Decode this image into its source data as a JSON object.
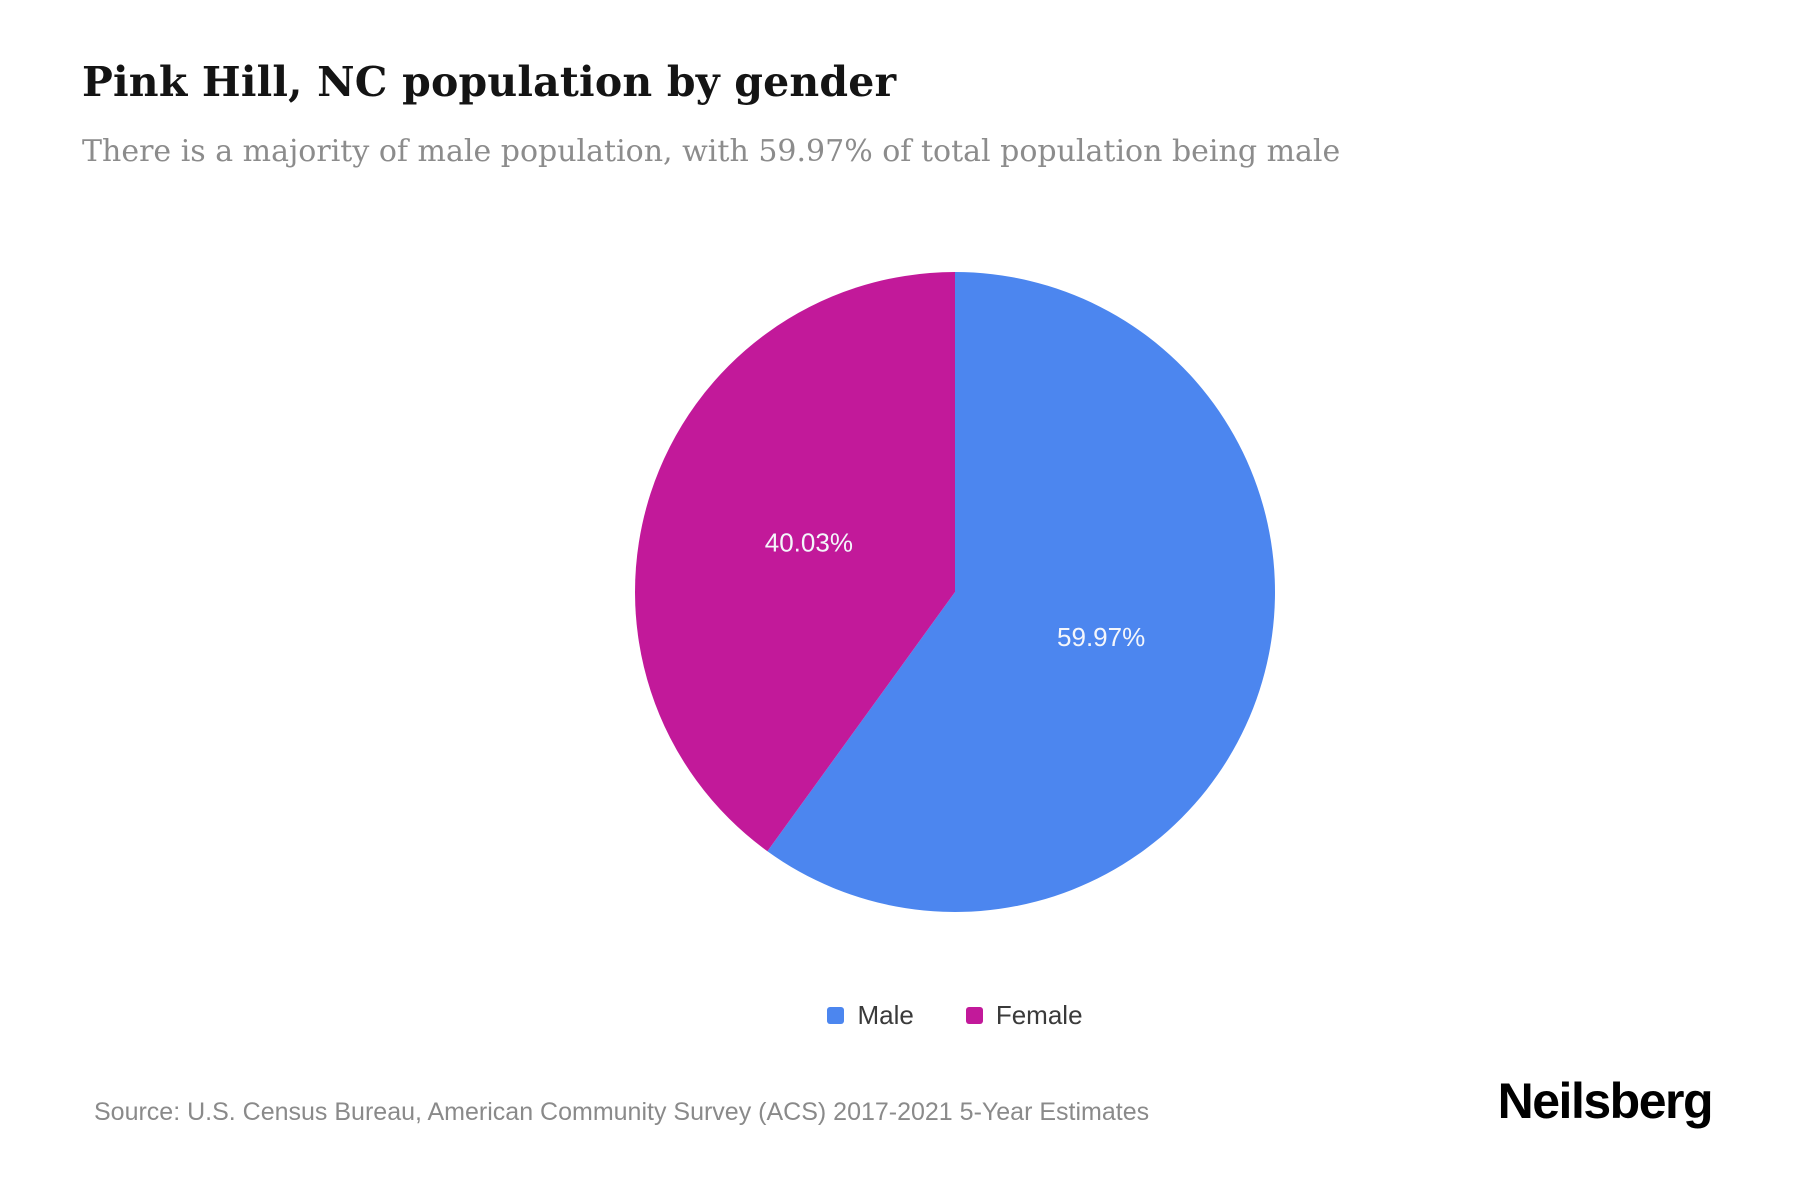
{
  "header": {
    "title": "Pink Hill, NC population by gender",
    "subtitle": "There is a majority of male population, with 59.97% of total population being male"
  },
  "chart_data": {
    "type": "pie",
    "labels": [
      "Male",
      "Female"
    ],
    "values": [
      59.97,
      40.03
    ],
    "data_labels": [
      "59.97%",
      "40.03%"
    ],
    "colors": [
      "#4c86ef",
      "#c2199a"
    ],
    "start_angle_deg": 0,
    "direction": "clockwise",
    "legend_position": "bottom",
    "title": "Pink Hill, NC population by gender"
  },
  "legend": {
    "items": [
      {
        "label": "Male",
        "color": "#4c86ef"
      },
      {
        "label": "Female",
        "color": "#c2199a"
      }
    ]
  },
  "footer": {
    "source": "Source: U.S. Census Bureau, American Community Survey (ACS) 2017-2021 5-Year Estimates",
    "brand": "Neilsberg"
  }
}
